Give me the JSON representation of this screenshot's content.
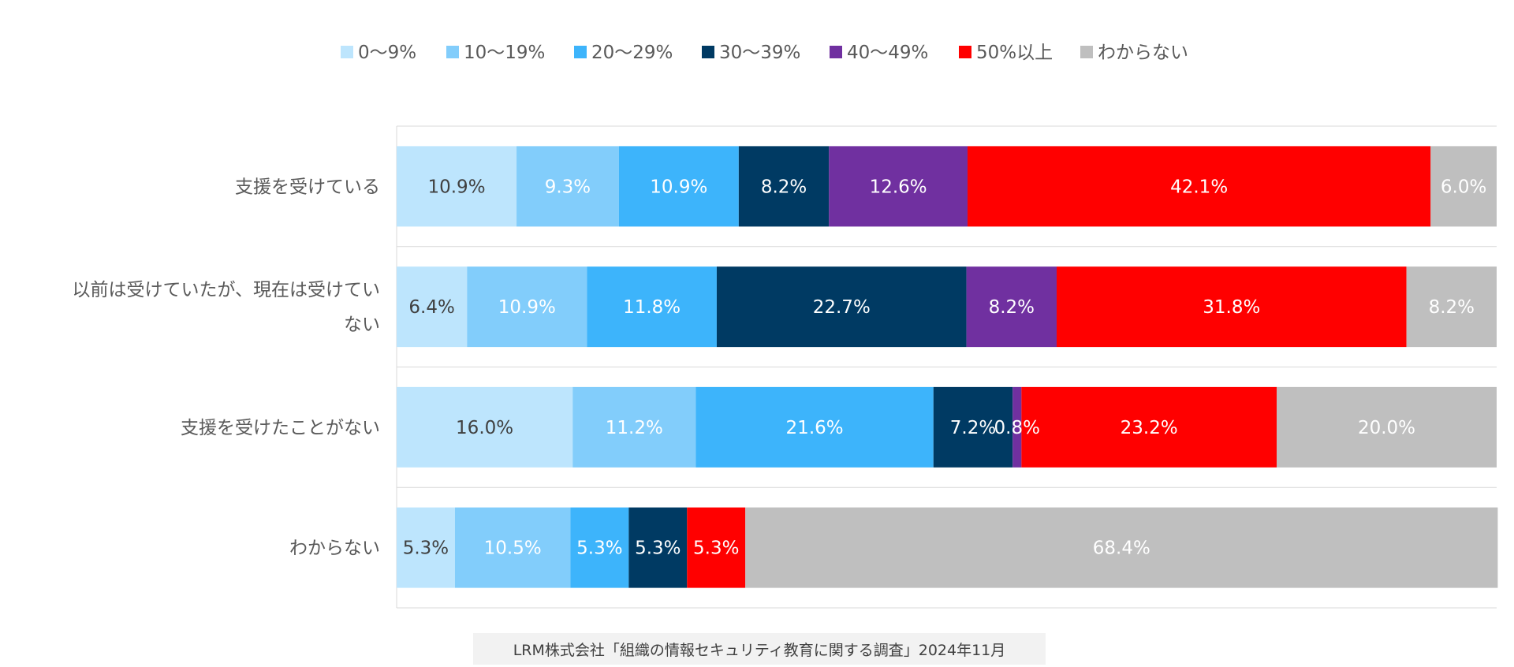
{
  "chart_data": {
    "type": "bar",
    "orientation": "horizontal-stacked-100",
    "title": "",
    "legend_position": "top",
    "categories": [
      "支援を受けている",
      [
        "以前は受けていたが、現在は受けてい",
        "ない"
      ],
      "支援を受けたことがない",
      "わからない"
    ],
    "series": [
      {
        "name": "0～9%",
        "color": "#bde5fd",
        "label_color": "#404040",
        "values": [
          10.9,
          6.4,
          16.0,
          5.3
        ]
      },
      {
        "name": "10～19%",
        "color": "#82cdfb",
        "label_color": "#ffffff",
        "values": [
          9.3,
          10.9,
          11.2,
          10.5
        ]
      },
      {
        "name": "20～29%",
        "color": "#3db4fb",
        "label_color": "#ffffff",
        "values": [
          10.9,
          11.8,
          21.6,
          5.3
        ]
      },
      {
        "name": "30～39%",
        "color": "#003a63",
        "label_color": "#ffffff",
        "values": [
          8.2,
          22.7,
          7.2,
          5.3
        ]
      },
      {
        "name": "40～49%",
        "color": "#7030a0",
        "label_color": "#ffffff",
        "values": [
          12.6,
          8.2,
          0.8,
          0
        ]
      },
      {
        "name": "50%以上",
        "color": "#ff0000",
        "label_color": "#ffffff",
        "values": [
          42.1,
          31.8,
          23.2,
          5.3
        ]
      },
      {
        "name": "わからない",
        "color": "#bfbfbf",
        "label_color": "#ffffff",
        "values": [
          6.0,
          8.2,
          20.0,
          68.4
        ]
      }
    ],
    "value_suffix": "%",
    "xlim": [
      0,
      100
    ]
  },
  "source": "LRM株式会社「組織の情報セキュリティ教育に関する調査」2024年11月"
}
